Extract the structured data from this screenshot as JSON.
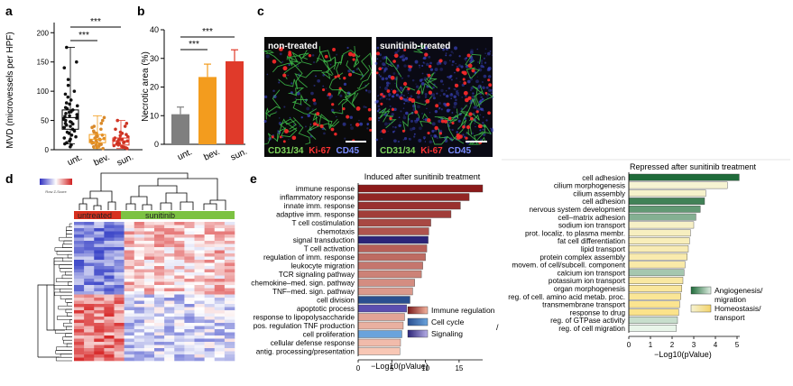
{
  "panels": {
    "a": {
      "letter": "a",
      "ylabel": "MVD (microvessels per HPF)",
      "yticks": [
        "0",
        "50",
        "100",
        "150",
        "200"
      ],
      "groups": [
        "unt.",
        "bev.",
        "sun."
      ],
      "sig_labels": [
        "***",
        "***"
      ]
    },
    "b": {
      "letter": "b",
      "ylabel": "Necrotic area (%)",
      "yticks": [
        "0",
        "10",
        "20",
        "30",
        "40"
      ],
      "groups": [
        "unt.",
        "bev.",
        "sun."
      ],
      "sig_labels": [
        "***",
        "***"
      ]
    },
    "c": {
      "letter": "c",
      "left_title": "non-treated",
      "right_title": "sunitinib-treated",
      "stain_cd31": "CD31/34",
      "stain_ki67": "Ki-67",
      "stain_cd45": "CD45"
    },
    "d": {
      "letter": "d",
      "colorbar_label": "Row Z-Score",
      "group_untreated": "untreated",
      "group_sunitinib": "sunitinib"
    },
    "e": {
      "letter": "e",
      "left_title": "Induced after sunitinib treatment",
      "right_title": "Repressed after sunitinib treatment",
      "xlabel": "−Log10(pValue)",
      "left_xticks": [
        "0",
        "5",
        "10",
        "15"
      ],
      "right_xticks": [
        "0",
        "1",
        "2",
        "3",
        "4",
        "5"
      ],
      "left_legend": [
        "Immune regulation",
        "Cell cycle",
        "Signaling"
      ],
      "right_legend": [
        "Angiogenesis/\nmigration",
        "Homeostasis/\ntransport"
      ],
      "slash": "/"
    }
  },
  "colors": {
    "unt": "#7f7f7f",
    "bev": "#f39c1e",
    "sun": "#e03a2a",
    "immune": "#c23b22",
    "cellcycle": "#3b6fb0",
    "signaling": "#3b2f8f",
    "angio": "#2f8f4e",
    "homeo": "#f3e59a",
    "untreated_bar": "#d7301f",
    "sunitinib_bar": "#7cc242"
  },
  "chart_data": [
    {
      "type": "scatter",
      "panel": "a",
      "title": "",
      "xlabel": "",
      "ylabel": "MVD (microvessels per HPF)",
      "categories": [
        "unt.",
        "bev.",
        "sun."
      ],
      "ylim": [
        0,
        200
      ],
      "series": [
        {
          "name": "unt.",
          "values": [
            5,
            8,
            10,
            12,
            15,
            18,
            20,
            22,
            25,
            28,
            30,
            32,
            35,
            38,
            40,
            42,
            44,
            45,
            47,
            48,
            50,
            52,
            54,
            55,
            57,
            58,
            60,
            62,
            64,
            65,
            68,
            70,
            72,
            75,
            78,
            80,
            85,
            90,
            95,
            100,
            110,
            120,
            140,
            150,
            175
          ]
        },
        {
          "name": "bev.",
          "values": [
            2,
            4,
            5,
            6,
            8,
            9,
            10,
            11,
            12,
            13,
            14,
            15,
            16,
            17,
            18,
            19,
            20,
            22,
            23,
            24,
            25,
            26,
            28,
            30,
            32,
            35,
            38,
            40,
            45,
            50,
            55
          ]
        },
        {
          "name": "sun.",
          "values": [
            2,
            3,
            4,
            5,
            6,
            7,
            8,
            9,
            10,
            11,
            12,
            13,
            14,
            15,
            16,
            17,
            18,
            19,
            20,
            22,
            24,
            26,
            28,
            30,
            35,
            40,
            45,
            50
          ]
        }
      ],
      "significance": [
        [
          "unt.",
          "bev.",
          "***"
        ],
        [
          "unt.",
          "sun.",
          "***"
        ]
      ]
    },
    {
      "type": "bar",
      "panel": "b",
      "title": "",
      "xlabel": "",
      "ylabel": "Necrotic area (%)",
      "categories": [
        "unt.",
        "bev.",
        "sun."
      ],
      "values": [
        10.5,
        23.5,
        29
      ],
      "errors": [
        2.5,
        4.5,
        4
      ],
      "ylim": [
        0,
        40
      ],
      "significance": [
        [
          "unt.",
          "bev.",
          "***"
        ],
        [
          "unt.",
          "sun.",
          "***"
        ]
      ]
    },
    {
      "type": "bar",
      "panel": "e-left",
      "title": "Induced after sunitinib treatment",
      "xlabel": "−Log10(pValue)",
      "ylabel": "",
      "orientation": "horizontal",
      "xlim": [
        0,
        18.5
      ],
      "categories": [
        "immune response",
        "inflammatory response",
        "innate imm. response",
        "adaptive imm. response",
        "T cell costimulation",
        "chemotaxis",
        "signal transduction",
        "T cell activation",
        "regulation of imm. response",
        "leukocyte migration",
        "TCR signaling pathway",
        "chemokine–med. sign. pathway",
        "TNF–med. sign. pathway",
        "cell division",
        "apoptotic process",
        "response to lipopolysaccharide",
        "pos. regulation TNF production",
        "cell proliferation",
        "cellular defense response",
        "antig. processing/presentation"
      ],
      "values": [
        18.5,
        16.5,
        15.2,
        13.8,
        10.8,
        10.5,
        10.4,
        10.2,
        10.0,
        9.6,
        9.4,
        8.4,
        8.1,
        7.7,
        7.2,
        6.9,
        6.7,
        6.5,
        6.3,
        6.2
      ],
      "groups": [
        "immune",
        "immune",
        "immune",
        "immune",
        "immune",
        "immune",
        "signaling",
        "immune",
        "immune",
        "immune",
        "immune",
        "immune",
        "immune",
        "cellcycle",
        "signaling",
        "immune",
        "immune",
        "cellcycle",
        "immune",
        "immune"
      ],
      "legend": [
        "Immune regulation",
        "Cell cycle",
        "Signaling"
      ]
    },
    {
      "type": "bar",
      "panel": "e-right",
      "title": "Repressed after sunitinib treatment",
      "xlabel": "−Log10(pValue)",
      "ylabel": "",
      "orientation": "horizontal",
      "xlim": [
        0,
        5
      ],
      "categories": [
        "cell adhesion",
        "cilium morphogenesis",
        "cilium assembly",
        "cell adhesion",
        "nervous system development",
        "cell–matrix adhesion",
        "sodium ion transport",
        "prot. localiz. to plasma membr.",
        "fat cell differentiation",
        "lipid transport",
        "protein complex assembly",
        "movem. of cell/subcell. component",
        "calcium ion transport",
        "potassium ion transport",
        "organ morphogenesis",
        "reg. of cell. amino acid metab. proc.",
        "transmembrane transport",
        "response to drug",
        "reg. of GTPase activity",
        "reg. of cell migration"
      ],
      "values": [
        5.1,
        4.55,
        3.55,
        3.5,
        3.3,
        3.1,
        3.0,
        2.85,
        2.8,
        2.75,
        2.7,
        2.6,
        2.55,
        2.5,
        2.45,
        2.4,
        2.35,
        2.3,
        2.25,
        2.2
      ],
      "groups": [
        "angio",
        "homeo",
        "homeo",
        "angio",
        "angio",
        "angio",
        "homeo",
        "homeo",
        "homeo",
        "homeo",
        "homeo",
        "homeo",
        "angio",
        "homeo",
        "homeo",
        "homeo",
        "homeo",
        "homeo",
        "angio",
        "angio"
      ],
      "legend": [
        "Angiogenesis/ migration",
        "Homeostasis/ transport"
      ]
    }
  ]
}
